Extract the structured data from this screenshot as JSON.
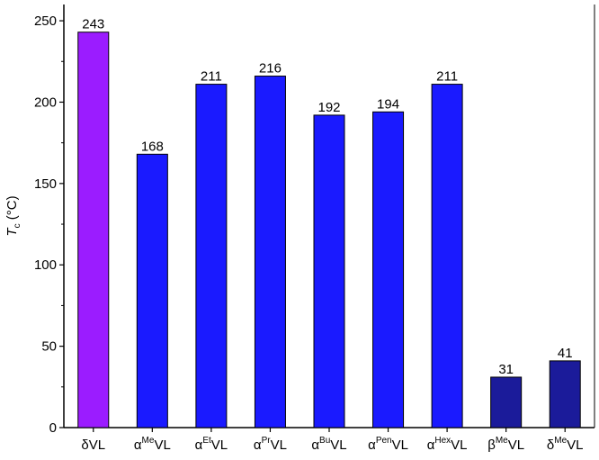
{
  "chart_data": {
    "type": "bar",
    "title": "",
    "xlabel": "",
    "ylabel": {
      "symbol": "T",
      "subscript": "c",
      "unit": " (°C)"
    },
    "ylim": [
      0,
      260
    ],
    "yticks": [
      0,
      50,
      100,
      150,
      200,
      250
    ],
    "categories": [
      {
        "base": "δ",
        "sup": "",
        "suffix": "VL"
      },
      {
        "base": "α",
        "sup": "Me",
        "suffix": "VL"
      },
      {
        "base": "α",
        "sup": "Et",
        "suffix": "VL"
      },
      {
        "base": "α",
        "sup": "Pr",
        "suffix": "VL"
      },
      {
        "base": "α",
        "sup": "Bu",
        "suffix": "VL"
      },
      {
        "base": "α",
        "sup": "Pen",
        "suffix": "VL"
      },
      {
        "base": "α",
        "sup": "Hex",
        "suffix": "VL"
      },
      {
        "base": "β",
        "sup": "Me",
        "suffix": "VL"
      },
      {
        "base": "δ",
        "sup": "Me",
        "suffix": "VL"
      }
    ],
    "values": [
      243,
      168,
      211,
      216,
      192,
      194,
      211,
      31,
      41
    ],
    "bar_colors": [
      "#9b1cff",
      "#1a1aff",
      "#1a1aff",
      "#1a1aff",
      "#1a1aff",
      "#1a1aff",
      "#1a1aff",
      "#1b1b9a",
      "#1b1b9a"
    ],
    "grid": false,
    "legend": "none"
  }
}
